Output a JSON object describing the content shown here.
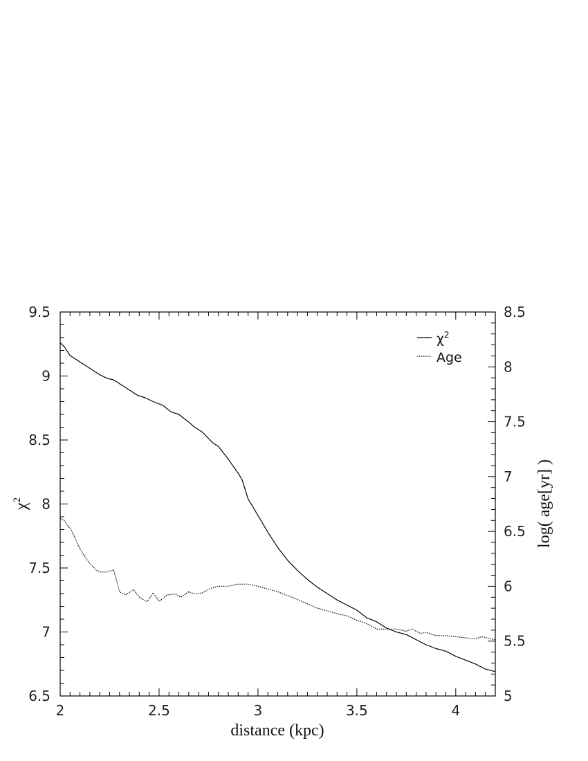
{
  "chart_data": {
    "type": "line",
    "title": "",
    "xlabel": "distance (kpc)",
    "ylabel_left": "χ",
    "ylabel_left_sup": "2",
    "ylabel_right": "log( age[yr] )",
    "xlim": [
      2,
      4.2
    ],
    "ylim_left": [
      6.5,
      9.5
    ],
    "ylim_right": [
      5,
      8.5
    ],
    "x_ticks": [
      "2",
      "2.5",
      "3",
      "3.5",
      "4"
    ],
    "y_left_ticks": [
      "6.5",
      "7",
      "7.5",
      "8",
      "8.5",
      "9",
      "9.5"
    ],
    "y_right_ticks": [
      "5",
      "5.5",
      "6",
      "6.5",
      "7",
      "7.5",
      "8",
      "8.5"
    ],
    "grid": false,
    "legend_position": "top-right",
    "legend": [
      {
        "label": "χ",
        "sup": "2",
        "style": "solid"
      },
      {
        "label": "Age",
        "sup": "",
        "style": "dotted"
      }
    ],
    "series": [
      {
        "name": "χ2",
        "axis": "left",
        "style": "solid",
        "x": [
          2.0,
          2.02,
          2.05,
          2.1,
          2.15,
          2.2,
          2.24,
          2.27,
          2.3,
          2.35,
          2.39,
          2.43,
          2.47,
          2.52,
          2.56,
          2.6,
          2.65,
          2.68,
          2.72,
          2.77,
          2.8,
          2.85,
          2.9,
          2.92,
          2.95,
          3.0,
          3.05,
          3.1,
          3.15,
          3.2,
          3.25,
          3.3,
          3.35,
          3.4,
          3.45,
          3.5,
          3.55,
          3.6,
          3.65,
          3.7,
          3.75,
          3.8,
          3.85,
          3.9,
          3.95,
          4.0,
          4.05,
          4.1,
          4.15,
          4.2
        ],
        "values": [
          9.26,
          9.23,
          9.16,
          9.11,
          9.06,
          9.01,
          8.98,
          8.97,
          8.94,
          8.89,
          8.85,
          8.83,
          8.8,
          8.77,
          8.72,
          8.7,
          8.64,
          8.6,
          8.56,
          8.48,
          8.45,
          8.35,
          8.24,
          8.19,
          8.04,
          7.91,
          7.78,
          7.66,
          7.56,
          7.48,
          7.41,
          7.35,
          7.3,
          7.25,
          7.21,
          7.17,
          7.11,
          7.08,
          7.03,
          7.0,
          6.98,
          6.94,
          6.9,
          6.87,
          6.85,
          6.81,
          6.78,
          6.75,
          6.71,
          6.69
        ]
      },
      {
        "name": "Age",
        "axis": "right",
        "style": "dotted",
        "x": [
          2.0,
          2.02,
          2.06,
          2.1,
          2.14,
          2.18,
          2.2,
          2.24,
          2.27,
          2.3,
          2.33,
          2.37,
          2.4,
          2.44,
          2.47,
          2.5,
          2.54,
          2.58,
          2.61,
          2.65,
          2.68,
          2.72,
          2.76,
          2.8,
          2.85,
          2.9,
          2.95,
          3.0,
          3.1,
          3.2,
          3.3,
          3.4,
          3.45,
          3.5,
          3.55,
          3.6,
          3.65,
          3.7,
          3.75,
          3.78,
          3.82,
          3.85,
          3.9,
          3.95,
          4.0,
          4.05,
          4.1,
          4.13,
          4.16,
          4.2
        ],
        "values": [
          6.62,
          6.6,
          6.5,
          6.34,
          6.23,
          6.15,
          6.13,
          6.13,
          6.15,
          5.95,
          5.92,
          5.97,
          5.9,
          5.86,
          5.94,
          5.86,
          5.92,
          5.93,
          5.9,
          5.95,
          5.93,
          5.94,
          5.98,
          6.0,
          6.0,
          6.02,
          6.02,
          6.0,
          5.95,
          5.88,
          5.8,
          5.75,
          5.73,
          5.69,
          5.66,
          5.61,
          5.61,
          5.61,
          5.59,
          5.61,
          5.57,
          5.58,
          5.55,
          5.55,
          5.54,
          5.53,
          5.52,
          5.54,
          5.53,
          5.51
        ]
      }
    ]
  }
}
